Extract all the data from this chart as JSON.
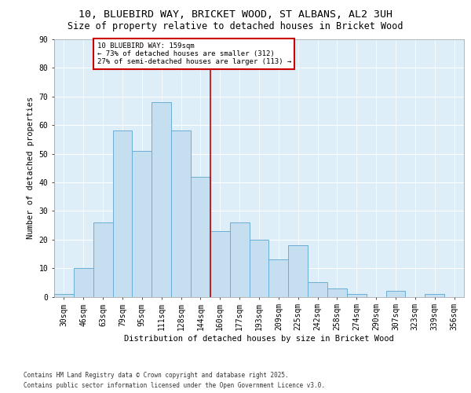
{
  "title1": "10, BLUEBIRD WAY, BRICKET WOOD, ST ALBANS, AL2 3UH",
  "title2": "Size of property relative to detached houses in Bricket Wood",
  "xlabel": "Distribution of detached houses by size in Bricket Wood",
  "ylabel": "Number of detached properties",
  "annotation_line1": "10 BLUEBIRD WAY: 159sqm",
  "annotation_line2": "← 73% of detached houses are smaller (312)",
  "annotation_line3": "27% of semi-detached houses are larger (113) →",
  "footer1": "Contains HM Land Registry data © Crown copyright and database right 2025.",
  "footer2": "Contains public sector information licensed under the Open Government Licence v3.0.",
  "bin_labels": [
    "30sqm",
    "46sqm",
    "63sqm",
    "79sqm",
    "95sqm",
    "111sqm",
    "128sqm",
    "144sqm",
    "160sqm",
    "177sqm",
    "193sqm",
    "209sqm",
    "225sqm",
    "242sqm",
    "258sqm",
    "274sqm",
    "290sqm",
    "307sqm",
    "323sqm",
    "339sqm",
    "356sqm"
  ],
  "bar_values": [
    1,
    10,
    26,
    58,
    51,
    68,
    58,
    42,
    23,
    26,
    20,
    13,
    18,
    5,
    3,
    1,
    0,
    2,
    0,
    1,
    0
  ],
  "bar_color": "#c5dff0",
  "bar_edgecolor": "#6baed6",
  "marker_color": "#cc0000",
  "ylim": [
    0,
    90
  ],
  "yticks": [
    0,
    10,
    20,
    30,
    40,
    50,
    60,
    70,
    80,
    90
  ],
  "bg_color": "#ddeef8",
  "grid_color": "#ffffff",
  "title1_fontsize": 9.5,
  "title2_fontsize": 8.5,
  "axis_fontsize": 7,
  "ylabel_fontsize": 7.5,
  "xlabel_fontsize": 7.5,
  "footer_fontsize": 5.5,
  "annotation_fontsize": 6.5
}
